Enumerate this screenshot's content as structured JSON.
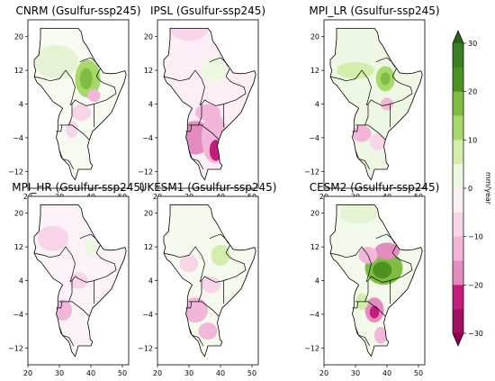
{
  "figure": {
    "variable_unit": "mm/year",
    "colors": {
      "frame": "#000000",
      "ocean": "#ffffff",
      "border": "#000000"
    },
    "colorbar": {
      "ticks": [
        "30",
        "20",
        "10",
        "0",
        "−10",
        "−20",
        "−30"
      ],
      "levels": [
        {
          "value": "> 30",
          "color": "#276419"
        },
        {
          "value": "25 to 30",
          "color": "#3b7d22"
        },
        {
          "value": "20 to 25",
          "color": "#4d9221"
        },
        {
          "value": "15 to 20",
          "color": "#7fbc41"
        },
        {
          "value": "10 to 15",
          "color": "#a6d96a"
        },
        {
          "value": "5 to 10",
          "color": "#d3eeab"
        },
        {
          "value": "0 to 5",
          "color": "#edf8e0"
        },
        {
          "value": "-5 to 0",
          "color": "#fbeef5"
        },
        {
          "value": "-10 to -5",
          "color": "#f7d4e7"
        },
        {
          "value": "-15 to -10",
          "color": "#f1b6da"
        },
        {
          "value": "-20 to -15",
          "color": "#e28cc0"
        },
        {
          "value": "-25 to -20",
          "color": "#c51b7d"
        },
        {
          "value": "-30 to -25",
          "color": "#a0105f"
        },
        {
          "value": "< -30",
          "color": "#8e0152"
        }
      ]
    },
    "axes": {
      "x_ticks": [
        "20",
        "30",
        "40",
        "50"
      ],
      "y_ticks": [
        "20",
        "12",
        "4",
        "−4",
        "−12"
      ]
    },
    "panels": [
      {
        "title": "CNRM (Gsulfur-ssp245)",
        "base": "#f6faf0",
        "patches": [
          {
            "cx": 39,
            "cy": 10,
            "rx": 4,
            "ry": 4.5,
            "color": "#a6d96a"
          },
          {
            "cx": 38.5,
            "cy": 10,
            "rx": 2,
            "ry": 2.5,
            "color": "#7fbc41"
          },
          {
            "cx": 29,
            "cy": 14,
            "rx": 7,
            "ry": 4,
            "color": "#e6f3d2"
          },
          {
            "cx": 37,
            "cy": 2,
            "rx": 3,
            "ry": 2,
            "color": "#f7d4e7"
          },
          {
            "cx": 34,
            "cy": -2,
            "rx": 2,
            "ry": 2,
            "color": "#f7d4e7"
          },
          {
            "cx": 41,
            "cy": 6,
            "rx": 2,
            "ry": 1.5,
            "color": "#f1b6da"
          }
        ]
      },
      {
        "title": "IPSL (Gsulfur-ssp245)",
        "base": "#fbeef5",
        "patches": [
          {
            "cx": 32,
            "cy": -4,
            "rx": 5,
            "ry": 4,
            "color": "#e28cc0"
          },
          {
            "cx": 38,
            "cy": -4,
            "rx": 4,
            "ry": 6,
            "color": "#f1b6da"
          },
          {
            "cx": 38.5,
            "cy": -7,
            "rx": 2,
            "ry": 2.5,
            "color": "#c51b7d"
          },
          {
            "cx": 38,
            "cy": 12,
            "rx": 4,
            "ry": 3,
            "color": "#edf8e0"
          },
          {
            "cx": 36,
            "cy": 2,
            "rx": 4,
            "ry": 2,
            "color": "#f1b6da"
          },
          {
            "cx": 30,
            "cy": 22,
            "rx": 6,
            "ry": 3,
            "color": "#f7d4e7"
          }
        ]
      },
      {
        "title": "MPI_LR (Gsulfur-ssp245)",
        "base": "#eef7e4",
        "patches": [
          {
            "cx": 39.5,
            "cy": 10,
            "rx": 3,
            "ry": 3,
            "color": "#a6d96a"
          },
          {
            "cx": 39.5,
            "cy": 10,
            "rx": 1.5,
            "ry": 1.5,
            "color": "#7fbc41"
          },
          {
            "cx": 30,
            "cy": 12,
            "rx": 6,
            "ry": 2,
            "color": "#d3eeab"
          },
          {
            "cx": 32,
            "cy": -3,
            "rx": 3,
            "ry": 2,
            "color": "#f1b6da"
          },
          {
            "cx": 37,
            "cy": -5,
            "rx": 2.5,
            "ry": 2,
            "color": "#f7d4e7"
          },
          {
            "cx": 40,
            "cy": 4,
            "rx": 2,
            "ry": 1.5,
            "color": "#f1b6da"
          }
        ]
      },
      {
        "title": "MPI_HR (Gsulfur-ssp245)",
        "base": "#fbf2f7",
        "patches": [
          {
            "cx": 31,
            "cy": -3,
            "rx": 3,
            "ry": 2.5,
            "color": "#f1b6da"
          },
          {
            "cx": 36,
            "cy": 4,
            "rx": 3,
            "ry": 2,
            "color": "#f7d4e7"
          },
          {
            "cx": 28,
            "cy": 14,
            "rx": 5,
            "ry": 3,
            "color": "#f7d4e7"
          },
          {
            "cx": 40,
            "cy": 12,
            "rx": 2,
            "ry": 2,
            "color": "#edf8e0"
          }
        ]
      },
      {
        "title": "UKESM1 (Gsulfur-ssp245)",
        "base": "#f5f9ee",
        "patches": [
          {
            "cx": 40,
            "cy": 10,
            "rx": 3,
            "ry": 2.5,
            "color": "#d3eeab"
          },
          {
            "cx": 32,
            "cy": -3,
            "rx": 4,
            "ry": 3,
            "color": "#f1b6da"
          },
          {
            "cx": 36,
            "cy": -8,
            "rx": 3,
            "ry": 2,
            "color": "#f1b6da"
          },
          {
            "cx": 37,
            "cy": 3,
            "rx": 3,
            "ry": 2,
            "color": "#f7d4e7"
          },
          {
            "cx": 30,
            "cy": 8,
            "rx": 3,
            "ry": 2,
            "color": "#f7d4e7"
          }
        ]
      },
      {
        "title": "CESM2 (Gsulfur-ssp245)",
        "base": "#f3f9ea",
        "patches": [
          {
            "cx": 39,
            "cy": 7,
            "rx": 6,
            "ry": 4,
            "color": "#7fbc41"
          },
          {
            "cx": 38.5,
            "cy": 6.5,
            "rx": 3,
            "ry": 2,
            "color": "#4d9221"
          },
          {
            "cx": 40,
            "cy": 11,
            "rx": 4,
            "ry": 2,
            "color": "#e28cc0"
          },
          {
            "cx": 34,
            "cy": 10,
            "rx": 3,
            "ry": 2,
            "color": "#f1b6da"
          },
          {
            "cx": 36,
            "cy": -3,
            "rx": 3,
            "ry": 3,
            "color": "#e28cc0"
          },
          {
            "cx": 36,
            "cy": -3.5,
            "rx": 1.5,
            "ry": 1.5,
            "color": "#c51b7d"
          },
          {
            "cx": 32,
            "cy": -1,
            "rx": 2,
            "ry": 2,
            "color": "#d3eeab"
          },
          {
            "cx": 31,
            "cy": 20,
            "rx": 6,
            "ry": 2.5,
            "color": "#e6f3d2"
          },
          {
            "cx": 38,
            "cy": -9,
            "rx": 2,
            "ry": 2,
            "color": "#f1b6da"
          }
        ]
      }
    ]
  }
}
